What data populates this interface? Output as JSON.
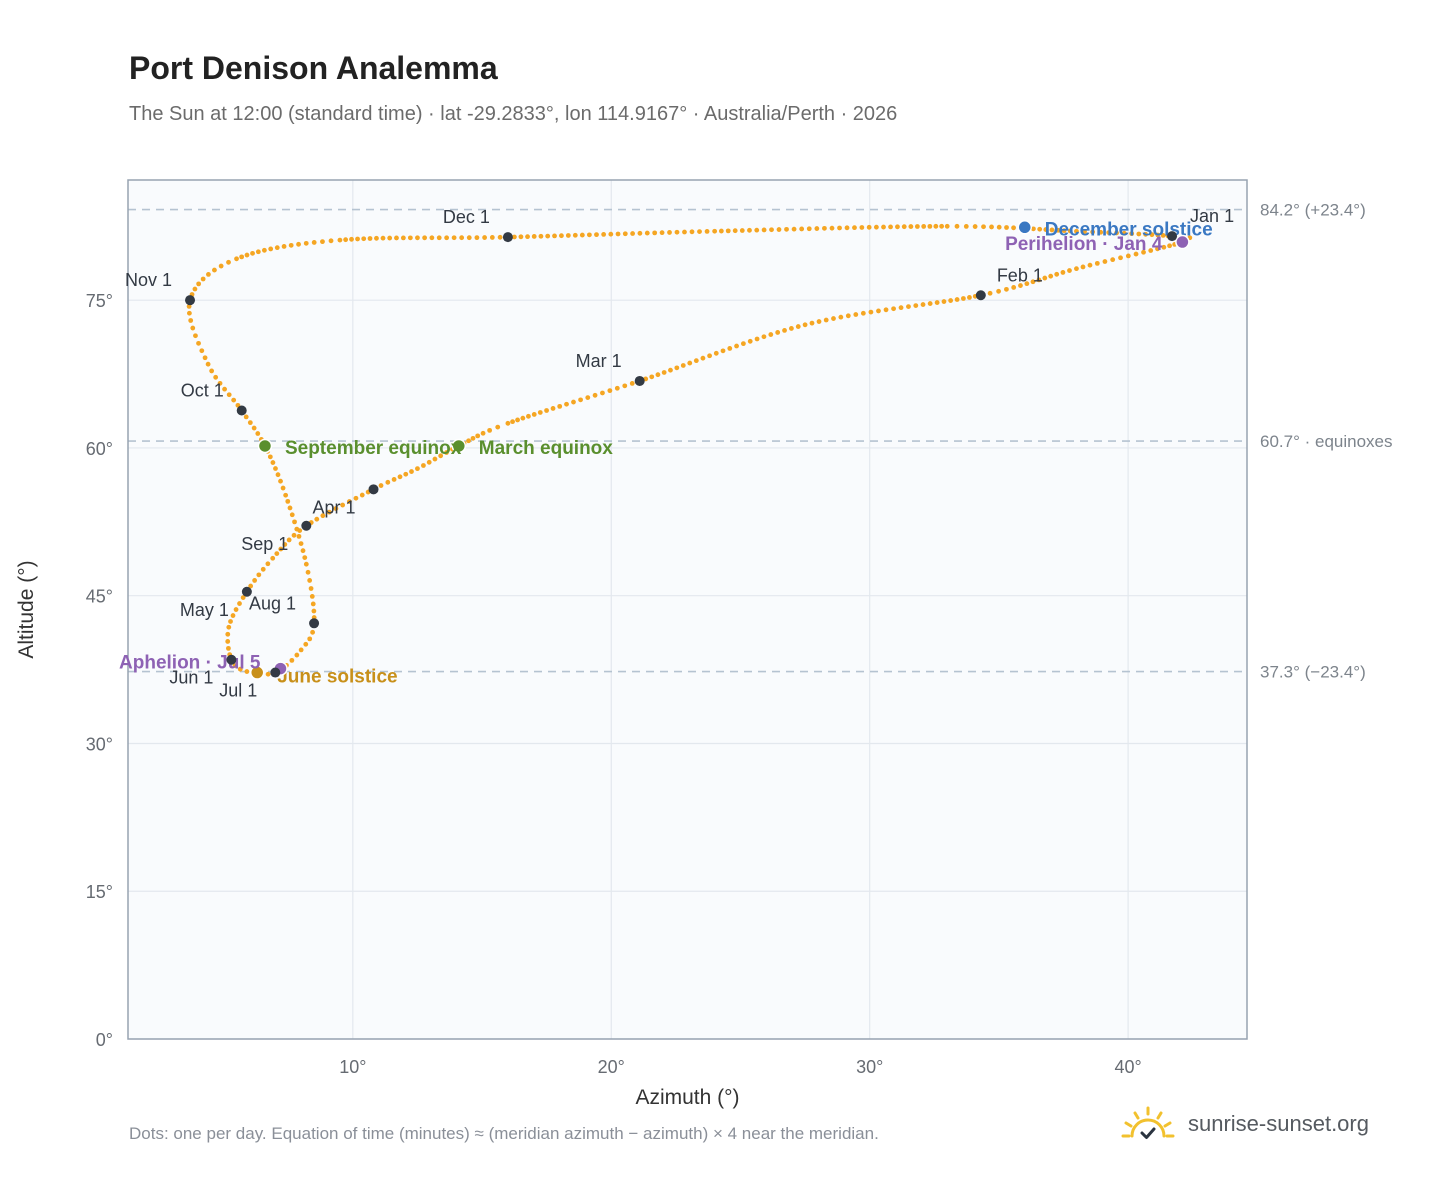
{
  "title": "Port Denison Analemma",
  "subtitle": "The Sun at 12:00 (standard time) · lat -29.2833°, lon 114.9167° · Australia/Perth · 2026",
  "footnote": "Dots: one per day. Equation of time (minutes) ≈ (meridian azimuth − azimuth) × 4 near the meridian.",
  "brand": {
    "name": "sunrise-sunset.org",
    "logo_icon": "sun-icon"
  },
  "colors": {
    "curve": "#f5a623",
    "month_dot": "#333a44",
    "solstice_june": "#c8901a",
    "solstice_december": "#3a78c2",
    "equinox": "#5a8f2e",
    "apsis": "#8e62b4",
    "reference_line": "#b5c3d1",
    "plot_background": "#f9fbfd",
    "grid": "#e3e8ee",
    "axis": "#97a3b1"
  },
  "chart_data": {
    "type": "scatter",
    "xlabel": "Azimuth (°)",
    "ylabel": "Altitude (°)",
    "xlim": [
      1.3,
      44.6
    ],
    "ylim": [
      0,
      87.2
    ],
    "x_ticks": [
      10,
      20,
      30,
      40
    ],
    "x_tick_labels": [
      "10°",
      "20°",
      "30°",
      "40°"
    ],
    "y_ticks": [
      0,
      15,
      30,
      45,
      60,
      75
    ],
    "y_tick_labels": [
      "0°",
      "15°",
      "30°",
      "45°",
      "60°",
      "75°"
    ],
    "grid": true,
    "reference_lines": [
      {
        "y": 84.2,
        "label": "84.2° (+23.4°)"
      },
      {
        "y": 60.7,
        "label": "60.7° · equinoxes"
      },
      {
        "y": 37.3,
        "label": "37.3° (−23.4°)"
      }
    ],
    "curve_knots_az_alt": [
      [
        41.7,
        81.5
      ],
      [
        42.1,
        80.9
      ],
      [
        38.0,
        78.2
      ],
      [
        34.3,
        75.5
      ],
      [
        27.5,
        72.5
      ],
      [
        21.1,
        66.8
      ],
      [
        16.0,
        62.5
      ],
      [
        14.1,
        60.2
      ],
      [
        12.5,
        57.9
      ],
      [
        10.8,
        55.8
      ],
      [
        8.2,
        52.1
      ],
      [
        6.9,
        48.8
      ],
      [
        5.9,
        45.4
      ],
      [
        5.2,
        41.8
      ],
      [
        5.3,
        38.5
      ],
      [
        5.9,
        37.3
      ],
      [
        7.0,
        37.2
      ],
      [
        8.0,
        39.5
      ],
      [
        8.5,
        42.2
      ],
      [
        8.2,
        48.2
      ],
      [
        7.4,
        55.2
      ],
      [
        6.6,
        60.2
      ],
      [
        5.7,
        63.8
      ],
      [
        4.4,
        68.5
      ],
      [
        3.7,
        75.0
      ],
      [
        5.5,
        79.2
      ],
      [
        9.5,
        81.1
      ],
      [
        16.0,
        81.4
      ],
      [
        24.0,
        82.0
      ],
      [
        33.0,
        82.5
      ],
      [
        38.0,
        82.0
      ],
      [
        41.7,
        81.5
      ]
    ],
    "month_markers": [
      {
        "label": "Jan 1",
        "azimuth": 41.7,
        "altitude": 81.5
      },
      {
        "label": "Feb 1",
        "azimuth": 34.3,
        "altitude": 75.5
      },
      {
        "label": "Mar 1",
        "azimuth": 21.1,
        "altitude": 66.8
      },
      {
        "label": "Apr 1",
        "azimuth": 10.8,
        "altitude": 55.8
      },
      {
        "label": "May 1",
        "azimuth": 5.9,
        "altitude": 45.4
      },
      {
        "label": "Jun 1",
        "azimuth": 5.3,
        "altitude": 38.5
      },
      {
        "label": "Jul 1",
        "azimuth": 7.0,
        "altitude": 37.2
      },
      {
        "label": "Aug 1",
        "azimuth": 8.5,
        "altitude": 42.2
      },
      {
        "label": "Sep 1",
        "azimuth": 8.2,
        "altitude": 52.1
      },
      {
        "label": "Oct 1",
        "azimuth": 5.7,
        "altitude": 63.8
      },
      {
        "label": "Nov 1",
        "azimuth": 3.7,
        "altitude": 75.0
      },
      {
        "label": "Dec 1",
        "azimuth": 16.0,
        "altitude": 81.4
      }
    ],
    "events": [
      {
        "label": "December solstice",
        "azimuth": 36.0,
        "altitude": 82.4,
        "kind": "solstice_december"
      },
      {
        "label": "June solstice",
        "azimuth": 6.3,
        "altitude": 37.2,
        "kind": "solstice_june"
      },
      {
        "label": "March equinox",
        "azimuth": 14.1,
        "altitude": 60.2,
        "kind": "equinox"
      },
      {
        "label": "September equinox",
        "azimuth": 6.6,
        "altitude": 60.2,
        "kind": "equinox"
      },
      {
        "label": "Perihelion · Jan 4",
        "azimuth": 42.1,
        "altitude": 80.9,
        "kind": "apsis"
      },
      {
        "label": "Aphelion · Jul 5",
        "azimuth": 7.2,
        "altitude": 37.6,
        "kind": "apsis"
      }
    ]
  }
}
